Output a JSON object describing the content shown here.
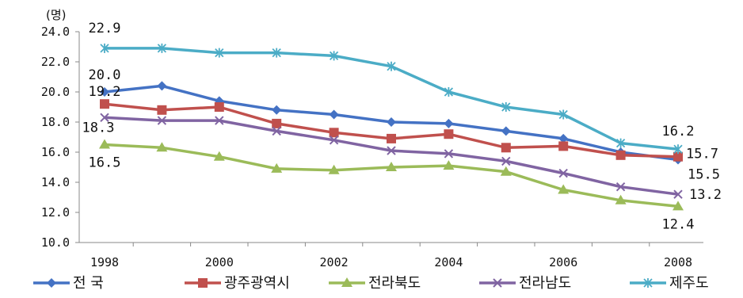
{
  "chart_data": {
    "type": "line",
    "y_unit": "(명)",
    "ylim": [
      10.0,
      24.0
    ],
    "y_ticks": [
      "10.0",
      "12.0",
      "14.0",
      "16.0",
      "18.0",
      "20.0",
      "22.0",
      "24.0"
    ],
    "x": [
      1998,
      1999,
      2000,
      2001,
      2002,
      2003,
      2004,
      2005,
      2006,
      2007,
      2008
    ],
    "x_tick_labels": [
      "1998",
      "2000",
      "2002",
      "2004",
      "2006",
      "2008"
    ],
    "grid": false,
    "legend_position": "bottom",
    "series": [
      {
        "name": "전      국",
        "color": "#4472C4",
        "marker": "diamond",
        "values": [
          20.0,
          20.4,
          19.4,
          18.8,
          18.5,
          18.0,
          17.9,
          17.4,
          16.9,
          16.0,
          15.5
        ]
      },
      {
        "name": "광주광역시",
        "color": "#C0504D",
        "marker": "square",
        "values": [
          19.2,
          18.8,
          19.0,
          17.9,
          17.3,
          16.9,
          17.2,
          16.3,
          16.4,
          15.8,
          15.7
        ]
      },
      {
        "name": "전라북도",
        "color": "#9BBB59",
        "marker": "triangle",
        "values": [
          16.5,
          16.3,
          15.7,
          14.9,
          14.8,
          15.0,
          15.1,
          14.7,
          13.5,
          12.8,
          12.4
        ]
      },
      {
        "name": "전라남도",
        "color": "#8064A2",
        "marker": "x",
        "values": [
          18.3,
          18.1,
          18.1,
          17.4,
          16.8,
          16.1,
          15.9,
          15.4,
          14.6,
          13.7,
          13.2
        ]
      },
      {
        "name": "제주도",
        "color": "#4BACC6",
        "marker": "star",
        "values": [
          22.9,
          22.9,
          22.6,
          22.6,
          22.4,
          21.7,
          20.0,
          19.0,
          18.5,
          16.6,
          16.2
        ]
      }
    ],
    "data_labels": [
      {
        "text": "22.9",
        "series": 4,
        "index": 0
      },
      {
        "text": "20.0",
        "series": 0,
        "index": 0
      },
      {
        "text": "19.2",
        "series": 1,
        "index": 0
      },
      {
        "text": "18.3",
        "series": 3,
        "index": 0
      },
      {
        "text": "16.5",
        "series": 2,
        "index": 0
      },
      {
        "text": "16.2",
        "series": 4,
        "index": 10
      },
      {
        "text": "15.7",
        "series": 1,
        "index": 10
      },
      {
        "text": "15.5",
        "series": 0,
        "index": 10
      },
      {
        "text": "13.2",
        "series": 3,
        "index": 10
      },
      {
        "text": "12.4",
        "series": 2,
        "index": 10
      }
    ]
  }
}
